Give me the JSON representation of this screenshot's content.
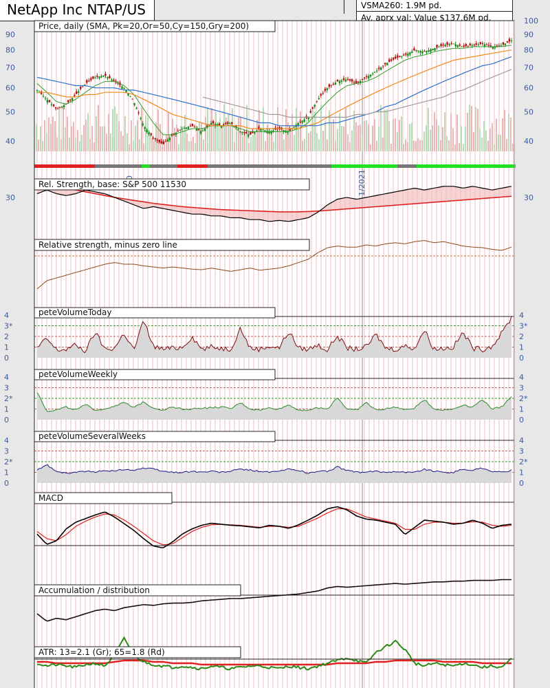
{
  "header": {
    "title": "NetApp Inc NTAP/US",
    "vsma": "VSMA260: 1.9M pd.",
    "avg_value": "Av. aprx val: Value $137.6M pd."
  },
  "panels": {
    "price": "Price, daily (SMA, Pk=20,Or=50,Cy=150,Gry=200)",
    "rel_strength": "Rel. Strength, base: S&P 500 11530",
    "rel_minus_zero": "Relative strength, minus zero line",
    "vol_today": "peteVolumeToday",
    "vol_weekly": "peteVolumeWeekly",
    "vol_several": "peteVolumeSeveralWeeks",
    "macd": "MACD",
    "accum": "Accumulation / distribution",
    "atr": "ATR: 13=2.1 (Gr); 65=1.8 (Rd)"
  },
  "date_labels": [
    "0",
    "1/2021"
  ],
  "colors": {
    "background": "#e8e8e8",
    "plot_bg": "#ffffff",
    "up_candle": "#1a8a1a",
    "down_candle": "#b01010",
    "sma20": "#2aa02a",
    "sma50": "#f08a1a",
    "sma150": "#2a70d0",
    "sma200": "#a09a9a",
    "axis_label": "#3a5aa0",
    "rs_line": "#000000",
    "rs_ma": "#e02020",
    "rs_minus_zero": "#8a4a1a",
    "vol_today": "#7a1010",
    "vol_weekly": "#2a8a2a",
    "vol_several": "#1a1a8a",
    "macd_line": "#000000",
    "macd_signal": "#e02020",
    "atr13": "#2a8a1a",
    "atr65": "#e02020",
    "grid_green": "#2aa02a",
    "grid_red": "#c06060"
  },
  "chart_data": [
    {
      "type": "line",
      "title": "Price, daily (SMA, Pk=20,Or=50,Cy=150,Gry=200)",
      "y_ticks": [
        40,
        50,
        60,
        70,
        80,
        90,
        100
      ],
      "ylim": [
        33,
        100
      ],
      "y_scale": "log",
      "series": [
        {
          "values": [
            59,
            55,
            51,
            53,
            57,
            62,
            65,
            66,
            63,
            60,
            54,
            45,
            41,
            39,
            42,
            44,
            45,
            43,
            46,
            45,
            46,
            43,
            42,
            44,
            43,
            44,
            43,
            46,
            48,
            55,
            60,
            63,
            64,
            62,
            65,
            68,
            72,
            75,
            77,
            80,
            79,
            81,
            83,
            84,
            82,
            83,
            84,
            82,
            83,
            86
          ]
        },
        {
          "values": [
            62,
            58,
            54,
            53,
            55,
            58,
            61,
            63,
            63,
            61,
            57,
            51,
            46,
            42,
            42,
            43,
            44,
            44,
            45,
            45,
            45,
            44,
            43,
            43,
            43,
            43,
            43,
            44,
            46,
            50,
            54,
            58,
            61,
            62,
            63,
            65,
            68,
            71,
            74,
            76,
            77,
            79,
            80,
            81,
            81,
            82,
            82,
            82,
            82,
            83
          ]
        },
        {
          "values": [
            58,
            58,
            57,
            56,
            56,
            57,
            57,
            58,
            58,
            58,
            57,
            55,
            53,
            51,
            49,
            48,
            47,
            46,
            45,
            45,
            45,
            45,
            44,
            44,
            44,
            44,
            44,
            44,
            45,
            46,
            48,
            50,
            52,
            54,
            56,
            58,
            60,
            62,
            64,
            66,
            68,
            70,
            72,
            74,
            75,
            76,
            77,
            78,
            79,
            80
          ]
        },
        {
          "values": [
            65,
            64,
            63,
            62,
            61,
            61,
            60,
            60,
            60,
            59,
            59,
            58,
            57,
            56,
            55,
            54,
            53,
            52,
            51,
            50,
            49,
            48,
            47,
            46,
            46,
            45,
            45,
            45,
            45,
            45,
            46,
            46,
            47,
            48,
            49,
            50,
            52,
            53,
            55,
            57,
            59,
            61,
            63,
            65,
            67,
            69,
            71,
            72,
            74,
            76
          ]
        },
        {
          "values": [
            null,
            null,
            null,
            null,
            null,
            null,
            null,
            null,
            null,
            null,
            null,
            null,
            null,
            null,
            null,
            null,
            null,
            56,
            55,
            54,
            53,
            52,
            51,
            50,
            49,
            49,
            48,
            48,
            48,
            48,
            48,
            48,
            48,
            49,
            49,
            50,
            50,
            51,
            52,
            53,
            54,
            55,
            56,
            58,
            59,
            61,
            63,
            65,
            67,
            69
          ]
        }
      ]
    },
    {
      "type": "line",
      "title": "Rel. Strength, base: S&P 500 11530",
      "y_ticks": [
        30
      ],
      "series": [
        {
          "values": [
            31,
            32,
            31,
            30.5,
            31,
            32,
            31.5,
            31,
            30,
            29,
            28,
            27,
            27.5,
            27,
            26.5,
            26,
            25.5,
            25.5,
            25,
            25,
            24.5,
            24.5,
            24,
            24,
            23.5,
            23.8,
            23.5,
            24,
            24.5,
            26,
            28,
            29.5,
            30,
            29.5,
            30,
            30.5,
            31,
            31.5,
            32,
            32.5,
            32,
            32.5,
            33,
            33,
            32.5,
            33,
            32.5,
            32,
            32.5,
            33
          ]
        },
        {
          "values": [
            34,
            33.5,
            33,
            32.5,
            32,
            31.5,
            31,
            30.5,
            30,
            29.6,
            29.2,
            28.8,
            28.4,
            28.1,
            27.8,
            27.5,
            27.3,
            27.1,
            26.9,
            26.7,
            26.6,
            26.5,
            26.4,
            26.3,
            26.2,
            26.1,
            26.1,
            26.1,
            26.2,
            26.3,
            26.5,
            26.7,
            26.9,
            27.1,
            27.3,
            27.5,
            27.7,
            27.9,
            28.1,
            28.3,
            28.5,
            28.7,
            28.9,
            29.1,
            29.3,
            29.5,
            29.7,
            29.9,
            30.1,
            30.3
          ]
        }
      ]
    },
    {
      "type": "line",
      "title": "Relative strength, minus zero line",
      "series": [
        {
          "values": [
            -6,
            -4.5,
            -4,
            -3.5,
            -3,
            -2.5,
            -2,
            -1.5,
            -1.2,
            -1.5,
            -1.5,
            -1.8,
            -2,
            -2.2,
            -2,
            -2.2,
            -2.4,
            -2.5,
            -2.2,
            -2.5,
            -2.8,
            -2.5,
            -2.2,
            -2.6,
            -2.4,
            -2.2,
            -1.8,
            -1.2,
            -0.6,
            0.6,
            1.5,
            1.8,
            1.6,
            1.6,
            2,
            1.8,
            2.2,
            2.4,
            2.2,
            2.6,
            2.8,
            2.4,
            2.6,
            2.2,
            1.8,
            1.6,
            1.5,
            1.2,
            1.0,
            1.6
          ]
        }
      ]
    },
    {
      "type": "area",
      "title": "peteVolumeToday",
      "y_ticks": [
        "0",
        "1",
        "2",
        "3*",
        "4"
      ],
      "ylim": [
        0,
        4
      ],
      "series": [
        {
          "values": [
            0.9,
            1.8,
            0.7,
            0.8,
            1.2,
            0.6,
            2.4,
            0.8,
            0.9,
            2.3,
            0.7,
            3.5,
            1.1,
            0.8,
            0.9,
            1.0,
            2.0,
            0.8,
            1.0,
            0.9,
            0.8,
            2.8,
            0.9,
            0.8,
            1.1,
            0.9,
            2.5,
            0.9,
            0.8,
            1.2,
            0.7,
            2.1,
            0.9,
            0.8,
            1.0,
            2.2,
            0.9,
            0.8,
            1.1,
            0.9,
            2.6,
            0.8,
            0.9,
            1.0,
            2.4,
            0.9,
            0.8,
            1.1,
            2.3,
            3.8
          ]
        }
      ]
    },
    {
      "type": "area",
      "title": "peteVolumeWeekly",
      "y_ticks": [
        "0",
        "1",
        "2*",
        "3",
        "4"
      ],
      "ylim": [
        0,
        4
      ],
      "series": [
        {
          "values": [
            2.6,
            0.8,
            0.9,
            1.2,
            0.9,
            1.4,
            0.9,
            1.0,
            1.3,
            1.6,
            1.1,
            1.7,
            1.1,
            0.9,
            1.2,
            1.0,
            1.0,
            1.1,
            1.1,
            1.2,
            1.0,
            1.6,
            1.0,
            0.9,
            1.1,
            1.0,
            1.4,
            0.9,
            0.9,
            1.1,
            1.0,
            2.1,
            1.0,
            0.9,
            1.6,
            0.9,
            1.0,
            1.2,
            0.9,
            1.1,
            1.9,
            1.0,
            0.9,
            1.0,
            1.4,
            1.2,
            1.9,
            1.0,
            1.2,
            2.2
          ]
        }
      ]
    },
    {
      "type": "area",
      "title": "peteVolumeSeveralWeeks",
      "y_ticks": [
        "0",
        "1",
        "2*",
        "3",
        "4"
      ],
      "ylim": [
        0,
        4
      ],
      "series": [
        {
          "values": [
            1.2,
            1.7,
            1.1,
            0.9,
            1.0,
            1.1,
            1.0,
            1.2,
            1.1,
            1.3,
            1.2,
            1.4,
            1.3,
            1.1,
            1.0,
            1.0,
            1.1,
            1.0,
            1.1,
            1.0,
            1.1,
            1.3,
            1.2,
            1.1,
            1.0,
            1.1,
            1.3,
            1.2,
            0.9,
            1.1,
            1.1,
            1.5,
            1.2,
            1.0,
            1.0,
            1.1,
            1.0,
            1.1,
            1.0,
            1.0,
            1.3,
            1.1,
            1.0,
            1.0,
            1.3,
            1.2,
            1.4,
            1.1,
            1.0,
            1.2
          ]
        }
      ]
    },
    {
      "type": "line",
      "title": "MACD",
      "series": [
        {
          "values": [
            -1.5,
            -3.5,
            -2.8,
            -0.5,
            0.8,
            1.5,
            2.2,
            2.8,
            1.8,
            0.5,
            -0.8,
            -2.4,
            -3.8,
            -4.2,
            -3.0,
            -1.5,
            -0.5,
            0.2,
            0.6,
            0.4,
            0.2,
            0.1,
            -0.1,
            -0.3,
            0.2,
            0.0,
            -0.4,
            0.3,
            1.2,
            2.2,
            3.4,
            3.8,
            3.2,
            2.0,
            1.4,
            1.2,
            0.8,
            0.4,
            -1.6,
            -0.2,
            1.2,
            1.0,
            0.8,
            0.4,
            0.6,
            1.2,
            0.6,
            -0.4,
            0.2,
            0.4
          ]
        },
        {
          "values": [
            -1.0,
            -2.4,
            -2.8,
            -1.6,
            0.0,
            1.0,
            1.8,
            2.4,
            2.2,
            1.2,
            0.0,
            -1.4,
            -2.8,
            -3.6,
            -3.4,
            -2.2,
            -1.0,
            -0.2,
            0.3,
            0.4,
            0.3,
            0.2,
            0.0,
            -0.2,
            0.0,
            0.0,
            -0.2,
            0.0,
            0.8,
            1.6,
            2.6,
            3.4,
            3.4,
            2.6,
            1.8,
            1.4,
            1.0,
            0.6,
            -0.6,
            -0.6,
            0.4,
            0.8,
            0.8,
            0.6,
            0.6,
            0.9,
            0.8,
            0.2,
            0.0,
            0.2
          ]
        }
      ]
    },
    {
      "type": "line",
      "title": "Accumulation / distribution",
      "series": [
        {
          "values": [
            -2.0,
            -3.0,
            -2.6,
            -2.8,
            -2.4,
            -2.0,
            -1.6,
            -1.4,
            -1.6,
            -1.2,
            -1.0,
            -0.8,
            -0.9,
            -0.7,
            -0.6,
            -0.6,
            -0.5,
            -0.3,
            -0.2,
            -0.1,
            0.0,
            0.0,
            0.1,
            0.2,
            0.3,
            0.4,
            0.5,
            0.6,
            0.8,
            1.0,
            1.4,
            1.6,
            1.5,
            1.6,
            1.7,
            1.8,
            1.9,
            2.0,
            1.9,
            2.0,
            2.1,
            2.2,
            2.2,
            2.3,
            2.3,
            2.4,
            2.4,
            2.4,
            2.5,
            2.5
          ]
        }
      ]
    },
    {
      "type": "line",
      "title": "ATR: 13=2.1 (Gr); 65=1.8 (Rd)",
      "series": [
        {
          "values": [
            1.8,
            1.6,
            1.7,
            1.6,
            1.5,
            1.7,
            1.8,
            1.6,
            2.4,
            3.6,
            2.4,
            1.9,
            1.7,
            1.6,
            1.5,
            1.6,
            1.5,
            1.4,
            1.6,
            1.5,
            1.4,
            1.5,
            1.6,
            1.6,
            1.5,
            1.4,
            1.6,
            1.5,
            1.4,
            1.6,
            1.8,
            2.0,
            2.2,
            2.0,
            1.8,
            2.6,
            3.0,
            3.4,
            2.8,
            1.8,
            1.6,
            1.8,
            1.7,
            1.6,
            1.8,
            1.7,
            1.5,
            1.6,
            1.5,
            2.1
          ]
        },
        {
          "values": [
            1.9,
            1.9,
            1.8,
            1.8,
            1.8,
            1.8,
            1.8,
            1.8,
            1.9,
            2.0,
            2.0,
            2.0,
            1.9,
            1.9,
            1.8,
            1.8,
            1.8,
            1.7,
            1.7,
            1.7,
            1.7,
            1.7,
            1.7,
            1.7,
            1.7,
            1.7,
            1.7,
            1.7,
            1.7,
            1.7,
            1.7,
            1.8,
            1.8,
            1.8,
            1.8,
            1.9,
            1.9,
            2.0,
            2.0,
            2.0,
            2.0,
            2.0,
            1.9,
            1.9,
            1.9,
            1.9,
            1.8,
            1.8,
            1.8,
            1.8
          ]
        }
      ]
    }
  ]
}
